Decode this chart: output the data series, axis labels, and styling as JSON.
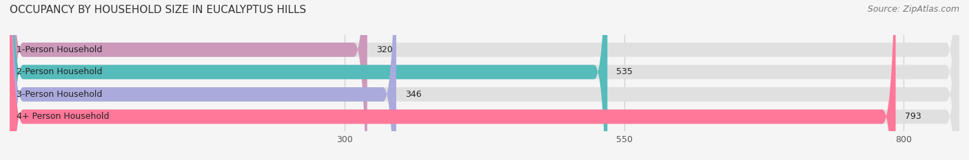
{
  "title": "OCCUPANCY BY HOUSEHOLD SIZE IN EUCALYPTUS HILLS",
  "source": "Source: ZipAtlas.com",
  "categories": [
    "1-Person Household",
    "2-Person Household",
    "3-Person Household",
    "4+ Person Household"
  ],
  "values": [
    320,
    535,
    346,
    793
  ],
  "bar_colors": [
    "#cc99bb",
    "#55bbbb",
    "#aaaadd",
    "#ff7799"
  ],
  "xlim": [
    0,
    850
  ],
  "xticks": [
    300,
    550,
    800
  ],
  "bg_color": "#f0f0f0",
  "bar_bg_color": "#e8e8e8",
  "title_fontsize": 11,
  "label_fontsize": 9,
  "value_fontsize": 9,
  "source_fontsize": 9
}
